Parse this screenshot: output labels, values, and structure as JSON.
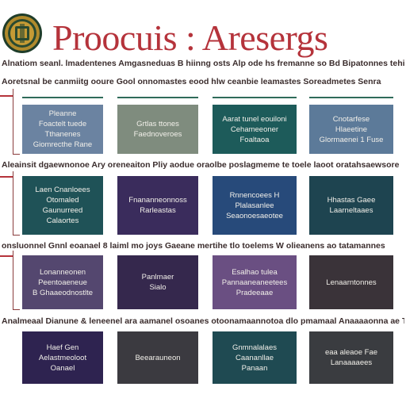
{
  "header": {
    "title": "Proocuis : Aresergs",
    "seal_icon": "gold-seal-icon",
    "title_color": "#b5333b"
  },
  "subtitle": "Alnatiom seanl. lmadentenes Amgasneduas B hiinng osts Alp ode hs fremanne so Bd Bipatonnes tehiamentes",
  "rows": [
    {
      "lead": "Aoretsnal be canmiitg ooure Gool onnomastes eood hlw ceanbie leamastes Soreadmetes Senra",
      "cards": [
        {
          "lines": [
            "Pleanne",
            "Foactelt tuede",
            "Tthanenes",
            "Giomrecthe Rane"
          ],
          "color": "#6b83a1"
        },
        {
          "lines": [
            "Grtlas ttones",
            "Faednoveroes"
          ],
          "color": "#7f8c7e"
        },
        {
          "lines": [
            "Aarat tunel eouiloni",
            "Cehameeoner",
            "Foaltaoa"
          ],
          "color": "#1d5b5a"
        },
        {
          "lines": [
            "Cnotarfese",
            "Hlaeetine",
            "Glormaenei 1 Fuse"
          ],
          "color": "#5c7a99"
        }
      ]
    },
    {
      "lead": "Aleainsit dgaewnonoe Ary oreneaiton Pliy aodue oraolbe poslagmeme te toele laoot oratahsaewsore",
      "cards": [
        {
          "lines": [
            "Laen Cnanloees",
            "Otomaled",
            "Gaunurreed",
            "Calaortes"
          ],
          "color": "#1f5257"
        },
        {
          "lines": [
            "Fnananneonnoss",
            "Rarleastas"
          ],
          "color": "#3a2c5c"
        },
        {
          "lines": [
            "Rnnencoees H",
            "Plalasanlee",
            "Seaonoesaeotee"
          ],
          "color": "#274a7a"
        },
        {
          "lines": [
            "Hhastas Gaee",
            "Laarneltaaes"
          ],
          "color": "#1e4450"
        }
      ]
    },
    {
      "lead": "onsluonnel Gnnl eoanael 8 laiml mo joys Gaeane mertihe tlo toelems W olieanens ao tatamannes",
      "cards": [
        {
          "lines": [
            "Lonanneonen",
            "Peentoaeneue",
            "B Ghaaeodnostlte"
          ],
          "color": "#54476f"
        },
        {
          "lines": [
            "Panlmaer",
            "Sialo"
          ],
          "color": "#35284d"
        },
        {
          "lines": [
            "Esalhao tulea",
            "Pannaaneaneetees",
            "Pradeeaae"
          ],
          "color": "#6a4f82"
        },
        {
          "lines": [
            "Lenaarntonnes"
          ],
          "color": "#3a3339"
        }
      ]
    },
    {
      "lead": "Analmeaal Dianune & leneenel ara aamanel osoanes otoonamaannotoa dlo pmamaal Anaaaaonna ae Tls",
      "cards": [
        {
          "lines": [
            "Haef Gen",
            "Aelastmeoloot",
            "Oanael"
          ],
          "color": "#2e2350"
        },
        {
          "lines": [
            "Beearauneon"
          ],
          "color": "#3b3a40"
        },
        {
          "lines": [
            "Gnmnalalaes",
            "Caananllae",
            "Panaan"
          ],
          "color": "#1f4a52"
        },
        {
          "lines": [
            "eaa aleaoe Fae",
            "Lanaaaaees"
          ],
          "color": "#3a3c40"
        }
      ]
    }
  ]
}
